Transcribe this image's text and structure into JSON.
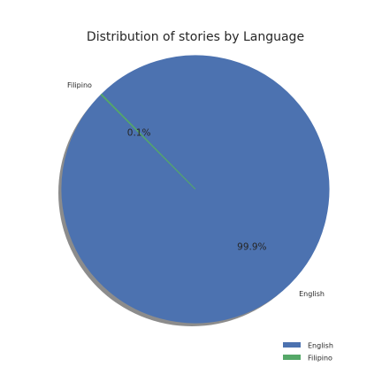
{
  "chart_data": {
    "type": "pie",
    "title": "Distribution of stories by Language",
    "categories": [
      "English",
      "Filipino"
    ],
    "values": [
      99.9,
      0.1
    ],
    "percent_labels": [
      "99.9%",
      "0.1%"
    ],
    "colors": [
      "#4C72B0",
      "#55A868"
    ],
    "start_angle_deg": 135,
    "shadow": true,
    "legend": {
      "position": "bottom-right",
      "entries": [
        "English",
        "Filipino"
      ]
    }
  }
}
